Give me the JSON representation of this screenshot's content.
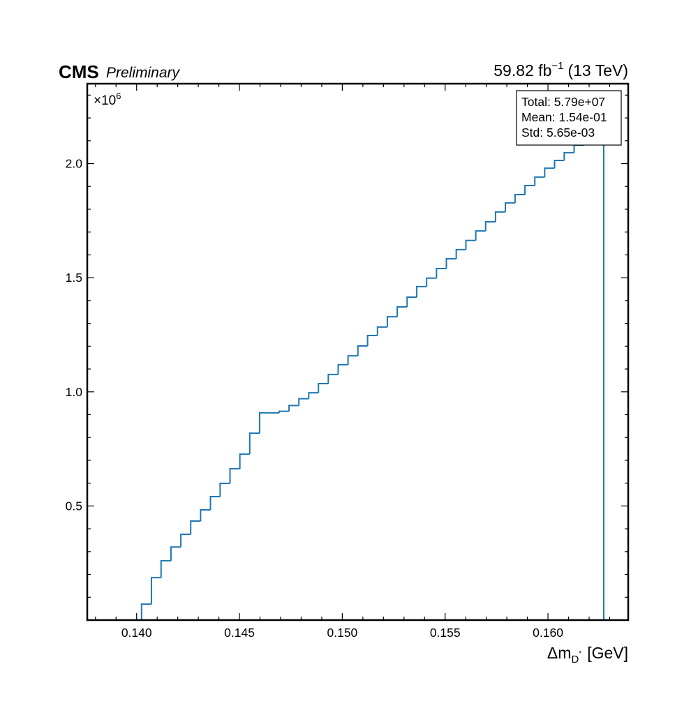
{
  "chart_data": {
    "type": "histogram",
    "experiment": "CMS",
    "status": "Preliminary",
    "lumi": {
      "text": "59.82 fb",
      "sup": "−1",
      "suffix": "(13 TeV)"
    },
    "xlabel": {
      "main": "Δm",
      "sub": "D",
      "subsup": "*",
      "unit": "[GeV]"
    },
    "y_offset": {
      "base": "×10",
      "exponent": "6"
    },
    "stats": [
      "Total: 5.79e+07",
      "Mean: 1.54e-01",
      "Std: 5.65e-03"
    ],
    "color": "#1f77b4",
    "bins": [
      0.14024,
      0.14072,
      0.14119,
      0.14167,
      0.14215,
      0.14263,
      0.14311,
      0.14359,
      0.14406,
      0.14454,
      0.14502,
      0.1455,
      0.14598,
      0.14645,
      0.14693,
      0.14741,
      0.14789,
      0.14837,
      0.14884,
      0.14932,
      0.1498,
      0.15028,
      0.15076,
      0.15123,
      0.15171,
      0.15219,
      0.15267,
      0.15315,
      0.15362,
      0.1541,
      0.15458,
      0.15506,
      0.15554,
      0.15601,
      0.15649,
      0.15697,
      0.15745,
      0.15793,
      0.1584,
      0.15888,
      0.15936,
      0.15984,
      0.16032,
      0.16079,
      0.16127,
      0.16175,
      0.16223,
      0.16271
    ],
    "values": [
      0.07,
      0.186,
      0.26,
      0.32,
      0.376,
      0.434,
      0.483,
      0.541,
      0.599,
      0.663,
      0.727,
      0.819,
      0.908,
      0.908,
      0.915,
      0.94,
      0.97,
      0.996,
      1.036,
      1.076,
      1.119,
      1.158,
      1.201,
      1.247,
      1.284,
      1.329,
      1.372,
      1.415,
      1.461,
      1.498,
      1.54,
      1.583,
      1.623,
      1.663,
      1.705,
      1.745,
      1.788,
      1.828,
      1.864,
      1.904,
      1.941,
      1.98,
      2.014,
      2.048,
      2.081,
      2.112,
      2.14
    ],
    "xlim": [
      0.1376,
      0.1639
    ],
    "ylim": [
      0,
      2.35
    ],
    "xticks": [
      {
        "value": 0.14,
        "label": "0.140"
      },
      {
        "value": 0.145,
        "label": "0.145"
      },
      {
        "value": 0.15,
        "label": "0.150"
      },
      {
        "value": 0.155,
        "label": "0.155"
      },
      {
        "value": 0.16,
        "label": "0.160"
      }
    ],
    "yticks": [
      0.5,
      {
        "value": 1,
        "label": "1.0"
      },
      1.5,
      {
        "value": 2,
        "label": "2.0"
      }
    ],
    "xminorticks": [
      0.138,
      0.139,
      0.141,
      0.142,
      0.143,
      0.144,
      0.146,
      0.147,
      0.148,
      0.149,
      0.151,
      0.152,
      0.153,
      0.154,
      0.156,
      0.157,
      0.158,
      0.159,
      0.161,
      0.162,
      0.163
    ],
    "yminorticks": [
      0.1,
      0.2,
      0.3,
      0.4,
      0.6,
      0.7,
      0.8,
      0.9,
      1.1,
      1.2,
      1.3,
      1.4,
      1.6,
      1.7,
      1.8,
      1.9,
      2.1,
      2.2,
      2.3
    ]
  }
}
